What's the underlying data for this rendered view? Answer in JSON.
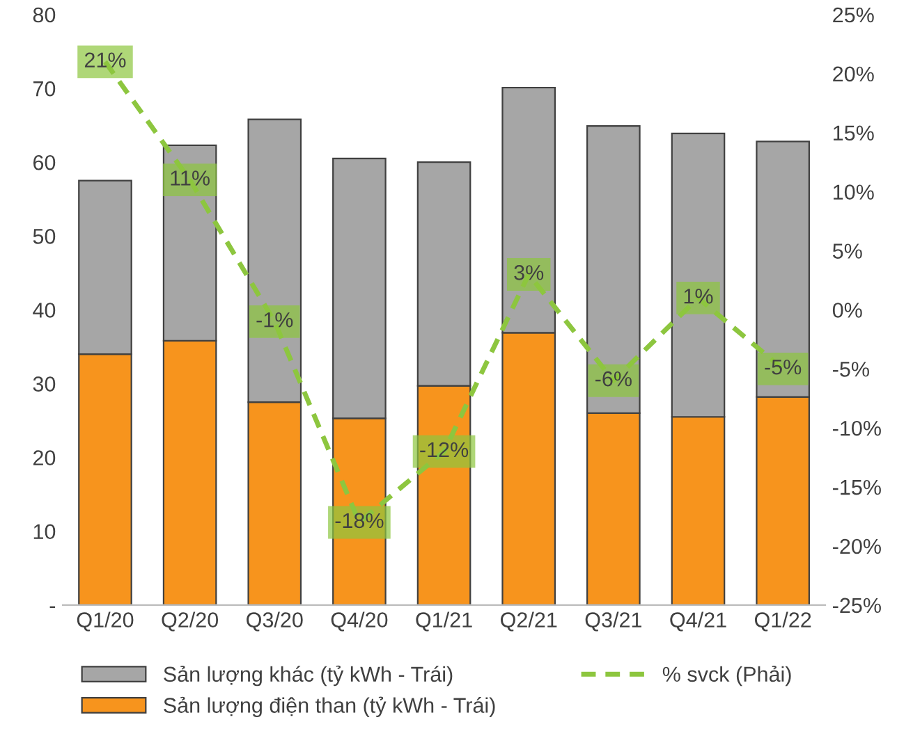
{
  "chart_data": {
    "type": "bar",
    "stacked": true,
    "categories": [
      "Q1/20",
      "Q2/20",
      "Q3/20",
      "Q4/20",
      "Q1/21",
      "Q2/21",
      "Q3/21",
      "Q4/21",
      "Q1/22"
    ],
    "series": [
      {
        "name": "Sản lượng điện than (tỷ kWh - Trái)",
        "color": "#f7941d",
        "values": [
          34,
          35.8,
          27.5,
          25.3,
          29.7,
          36.9,
          26,
          25.5,
          28.2
        ]
      },
      {
        "name": "Sản lượng khác (tỷ kWh - Trái)",
        "color": "#a6a6a6",
        "values": [
          23.5,
          26.5,
          38.3,
          35.2,
          30.3,
          33.2,
          38.9,
          38.4,
          34.6
        ]
      },
      {
        "name": "% svck (Phải)",
        "type": "line",
        "axis": "y2",
        "color": "#8dc63f",
        "line_style": "dashed",
        "values": [
          21,
          11,
          -1,
          -18,
          -12,
          3,
          -6,
          1,
          -5
        ],
        "value_labels": [
          "21%",
          "11%",
          "-1%",
          "-18%",
          "-12%",
          "3%",
          "-6%",
          "1%",
          "-5%"
        ]
      }
    ],
    "ylim": [
      0,
      80
    ],
    "yticks": [
      {
        "value": 0,
        "label": "-"
      },
      10,
      20,
      30,
      40,
      50,
      60,
      70,
      80
    ],
    "y2lim": [
      -25,
      25
    ],
    "y2ticks": [
      {
        "value": -25,
        "label": "-25%"
      },
      {
        "value": -20,
        "label": "-20%"
      },
      {
        "value": -15,
        "label": "-15%"
      },
      {
        "value": -10,
        "label": "-10%"
      },
      {
        "value": -5,
        "label": "-5%"
      },
      {
        "value": 0,
        "label": "0%"
      },
      {
        "value": 5,
        "label": "5%"
      },
      {
        "value": 10,
        "label": "10%"
      },
      {
        "value": 15,
        "label": "15%"
      },
      {
        "value": 20,
        "label": "20%"
      },
      {
        "value": 25,
        "label": "25%"
      }
    ],
    "grid": false,
    "legend": "bottom"
  }
}
